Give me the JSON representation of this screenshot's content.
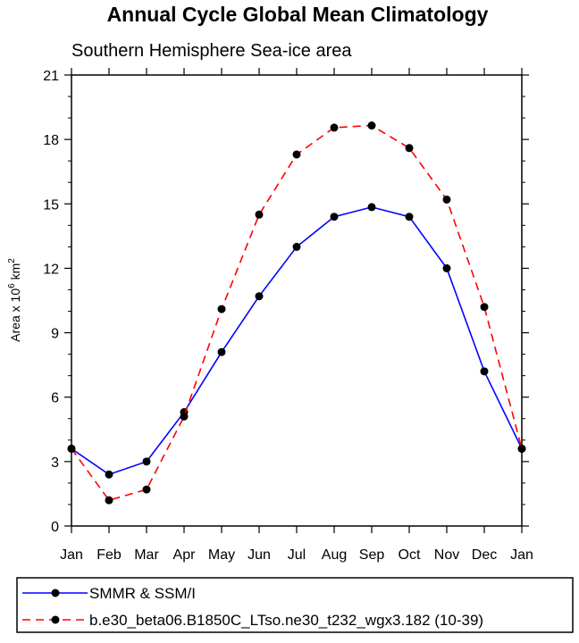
{
  "chart_data": {
    "type": "line",
    "title": "Annual Cycle Global Mean Climatology",
    "subtitle": "Southern Hemisphere Sea-ice area",
    "ylabel_main": "Area x 10",
    "ylabel_exp": "6",
    "ylabel_unit": " km",
    "ylabel_unit_exp": "2",
    "categories": [
      "Jan",
      "Feb",
      "Mar",
      "Apr",
      "May",
      "Jun",
      "Jul",
      "Aug",
      "Sep",
      "Oct",
      "Nov",
      "Dec",
      "Jan"
    ],
    "ylim": [
      0,
      21
    ],
    "yticks": [
      0,
      3,
      6,
      9,
      12,
      15,
      18,
      21
    ],
    "series": [
      {
        "name": "SMMR & SSM/I",
        "color": "#0000ff",
        "dash": "solid",
        "values": [
          3.6,
          2.4,
          3.0,
          5.3,
          8.1,
          10.7,
          13.0,
          14.4,
          14.85,
          14.4,
          12.0,
          7.2,
          3.6
        ]
      },
      {
        "name": "b.e30_beta06.B1850C_LTso.ne30_t232_wgx3.182 (10-39)",
        "color": "#ff0000",
        "dash": "dashed",
        "values": [
          3.6,
          1.2,
          1.7,
          5.1,
          10.1,
          14.5,
          17.3,
          18.55,
          18.65,
          17.6,
          15.2,
          10.2,
          3.6
        ]
      }
    ]
  }
}
